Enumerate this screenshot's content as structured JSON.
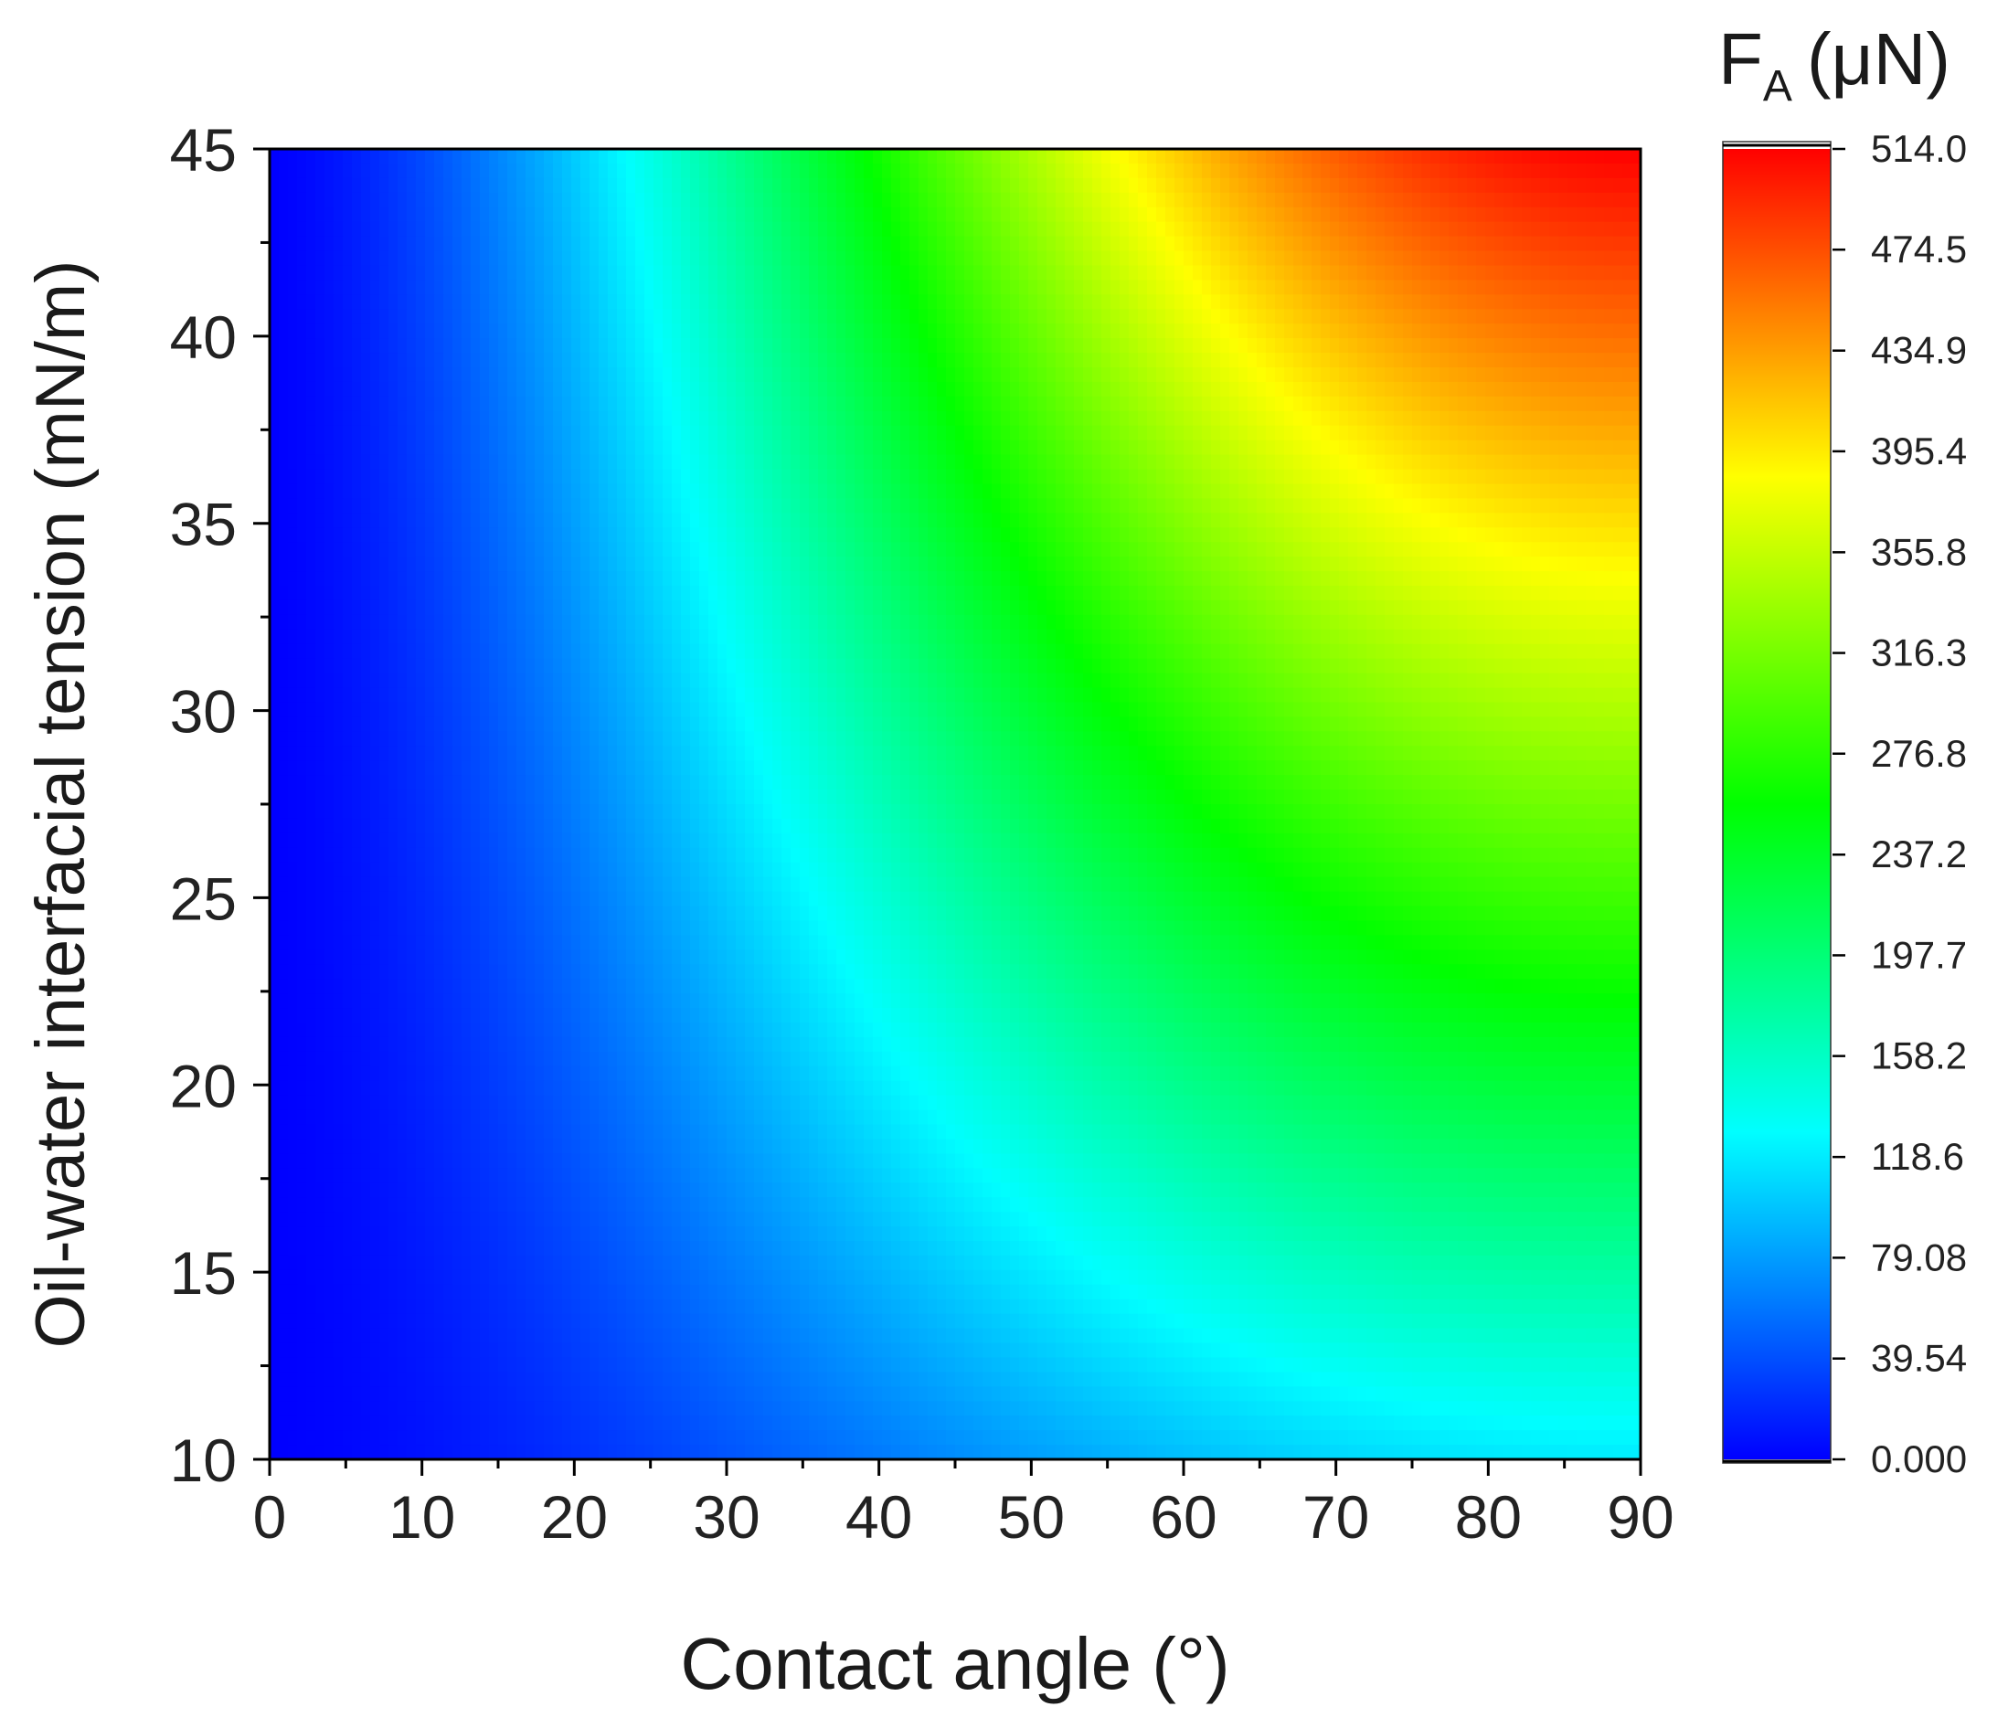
{
  "chart_data": {
    "type": "heatmap",
    "title": "",
    "xlabel": "Contact angle (°)",
    "ylabel": "Oil-water interfacial tension (mN/m)",
    "xlim": [
      0,
      90
    ],
    "ylim": [
      10,
      45
    ],
    "x_ticks": [
      0,
      10,
      20,
      30,
      40,
      50,
      60,
      70,
      80,
      90
    ],
    "y_ticks": [
      10,
      15,
      20,
      25,
      30,
      35,
      40,
      45
    ],
    "grid": false,
    "colorbar": {
      "title_main": "F",
      "title_sub": "A",
      "title_unit": "(μN)",
      "range": [
        0,
        514.0
      ],
      "tick_values": [
        0,
        39.54,
        79.08,
        118.6,
        158.2,
        197.7,
        237.2,
        276.8,
        316.3,
        355.8,
        395.4,
        434.9,
        474.5,
        514.0
      ],
      "tick_labels": [
        "0.000",
        "39.54",
        "79.08",
        "118.6",
        "158.2",
        "197.7",
        "237.2",
        "276.8",
        "316.3",
        "355.8",
        "395.4",
        "434.9",
        "474.5",
        "514.0"
      ],
      "colormap": [
        "#0000ff",
        "#00ffff",
        "#00ff00",
        "#ffff00",
        "#ff0000"
      ]
    },
    "z_corners": {
      "x0_y10": 0,
      "x90_y10": 118.6,
      "x0_y45": 0,
      "x90_y45": 514.0
    }
  }
}
